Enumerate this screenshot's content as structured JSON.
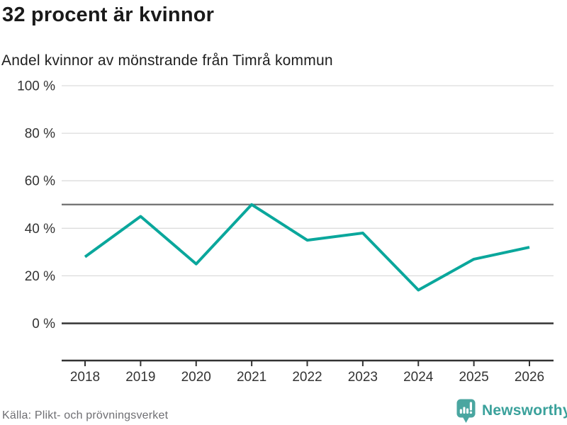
{
  "header": {
    "title": "32 procent är kvinnor",
    "subtitle": "Andel kvinnor av mönstrande från Timrå kommun"
  },
  "chart_data": {
    "type": "line",
    "title": "32 procent är kvinnor",
    "subtitle": "Andel kvinnor av mönstrande från Timrå kommun",
    "categories": [
      "2018",
      "2019",
      "2020",
      "2021",
      "2022",
      "2023",
      "2024",
      "2025",
      "2026"
    ],
    "series": [
      {
        "name": "Andel kvinnor av mönstrande",
        "values": [
          28,
          45,
          25,
          50,
          35,
          38,
          14,
          27,
          32
        ]
      }
    ],
    "xlabel": "",
    "ylabel": "",
    "ylim": [
      0,
      100
    ],
    "unit": "%",
    "grid": true,
    "legend": "none",
    "reference_line": 50,
    "yticks": [
      {
        "value": 0,
        "label": "0 %"
      },
      {
        "value": 20,
        "label": "20 %"
      },
      {
        "value": 40,
        "label": "40 %"
      },
      {
        "value": 60,
        "label": "60 %"
      },
      {
        "value": 80,
        "label": "80 %"
      },
      {
        "value": 100,
        "label": "100 %"
      }
    ]
  },
  "footer": {
    "source": "Källa: Plikt- och prövningsverket",
    "brand": "Newsworthy"
  },
  "colors": {
    "line": "#0aa79c",
    "grid": "#dcdcdc",
    "reference_line": "#6f6f6f",
    "zero_line": "#333333",
    "axis": "#333333",
    "tick_text": "#333333",
    "title": "#1a1a1a",
    "subtitle": "#1f1f1f",
    "source": "#6f6f73",
    "brand": "#3aa19b",
    "brand_icon": "#4aa6a0"
  }
}
